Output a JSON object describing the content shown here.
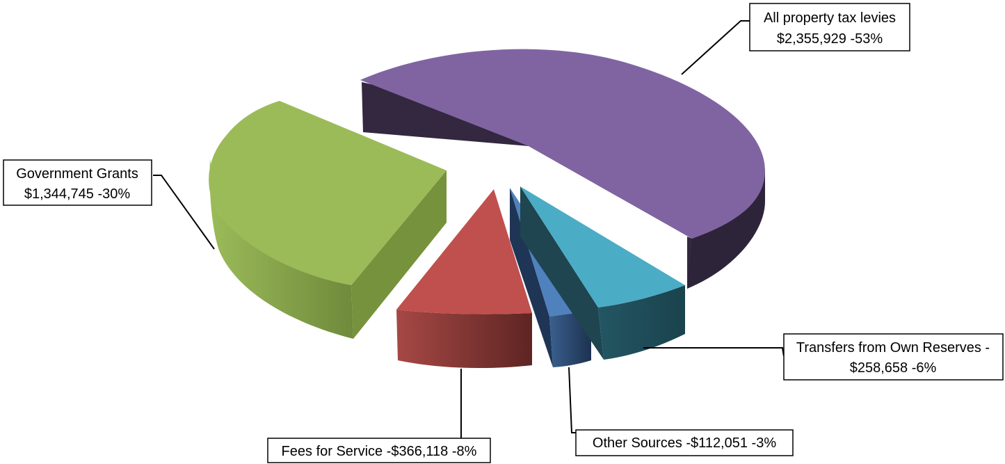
{
  "chart_data": {
    "type": "pie",
    "style": "3d-exploded",
    "slices": [
      {
        "name": "All property tax levies",
        "value": 2355929,
        "percent": 53,
        "label_line1": "All property tax levies",
        "label_line2": "$2,355,929 -53%",
        "color": "#8064A2"
      },
      {
        "name": "Transfers from Own Reserves",
        "value": 258658,
        "percent": 6,
        "label_line1": "Transfers from Own Reserves -",
        "label_line2": "$258,658 -6%",
        "color": "#4BACC6"
      },
      {
        "name": "Other Sources",
        "value": 112051,
        "percent": 3,
        "label_line1": "Other Sources -$112,051 -3%",
        "label_line2": "",
        "color": "#4F81BD"
      },
      {
        "name": "Fees for Service",
        "value": 366118,
        "percent": 8,
        "label_line1": "Fees for Service -$366,118 -8%",
        "label_line2": "",
        "color": "#C0504D"
      },
      {
        "name": "Government Grants",
        "value": 1344745,
        "percent": 30,
        "label_line1": "Government Grants",
        "label_line2": "$1,344,745 -30%",
        "color": "#9BBB59"
      }
    ]
  }
}
